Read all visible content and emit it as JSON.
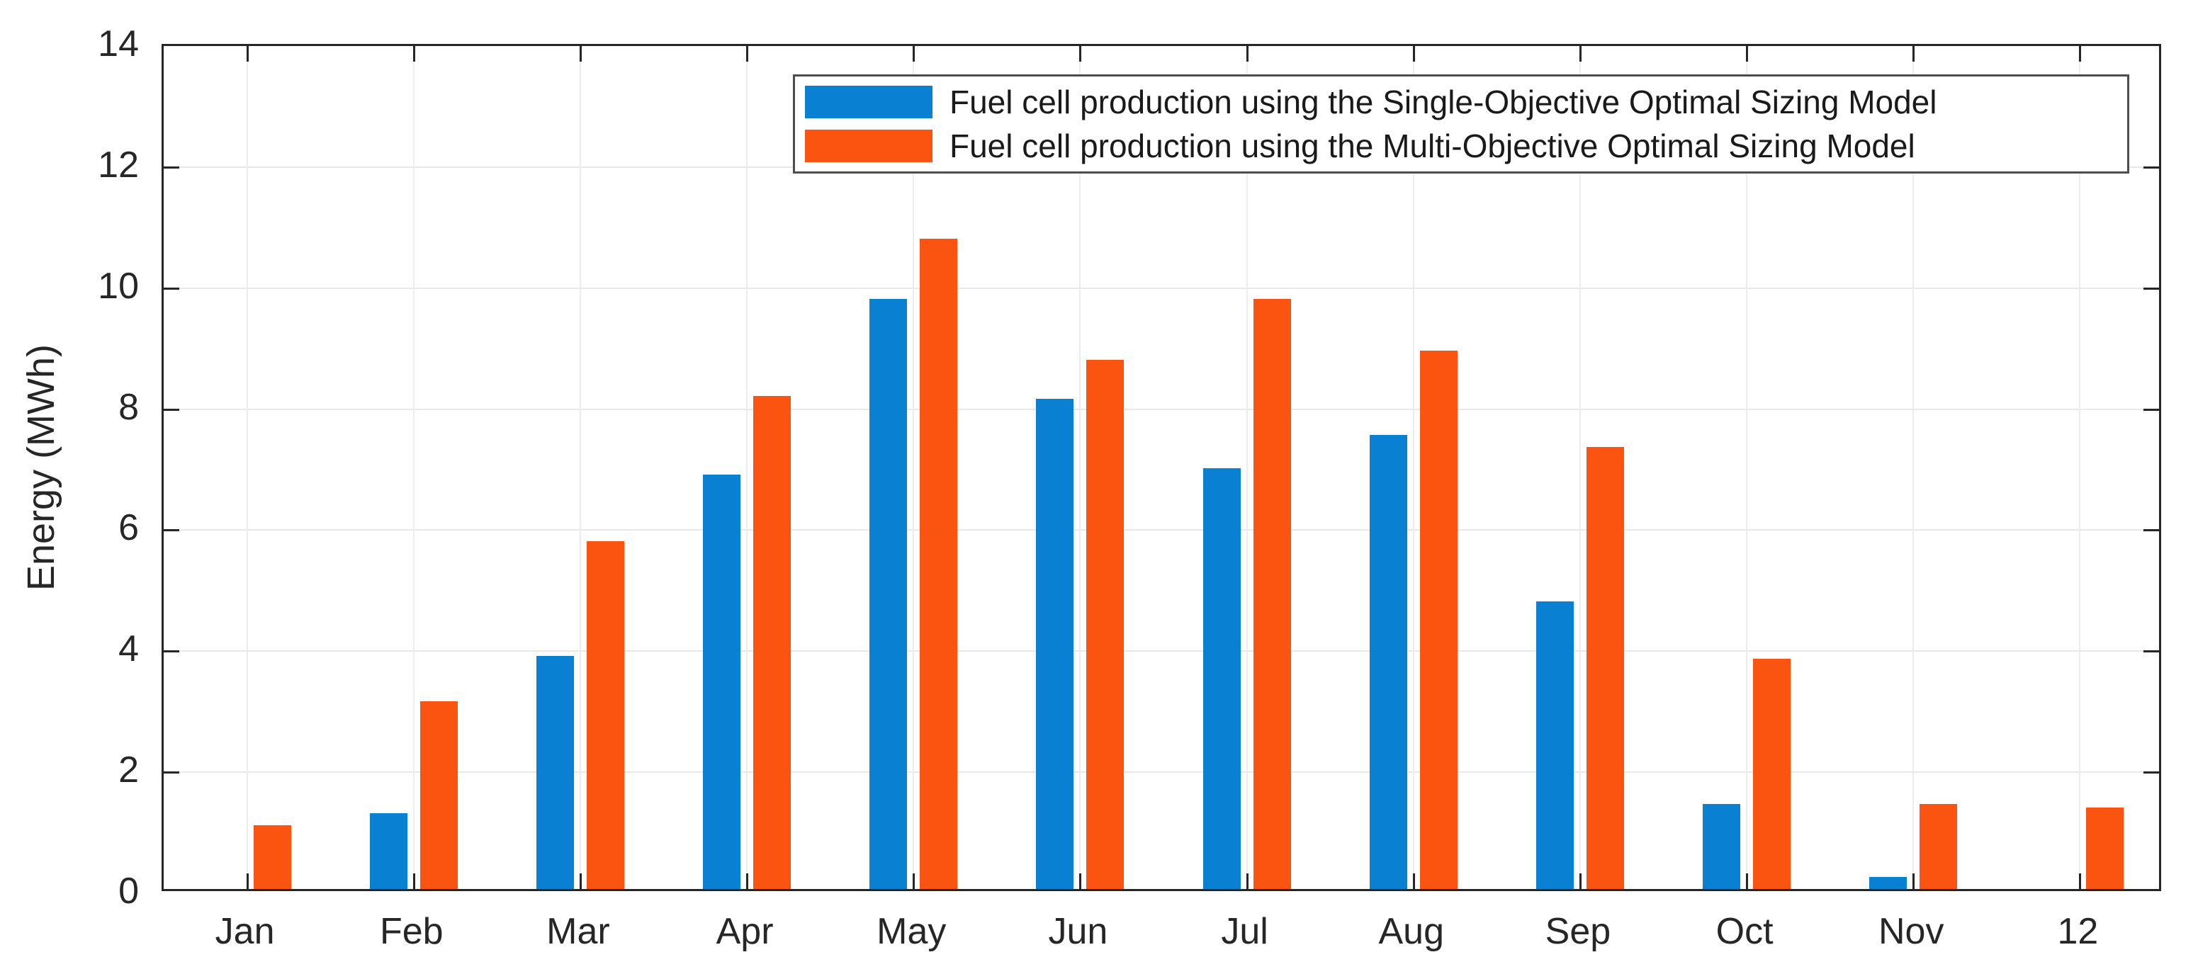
{
  "chart_data": {
    "type": "bar",
    "title": "",
    "xlabel": "",
    "ylabel": "Energy (MWh)",
    "ylim": [
      0,
      14
    ],
    "yticks": [
      0,
      2,
      4,
      6,
      8,
      10,
      12,
      14
    ],
    "grid": true,
    "legend_position": "top-right",
    "categories": [
      "Jan",
      "Feb",
      "Mar",
      "Apr",
      "May",
      "Jun",
      "Jul",
      "Aug",
      "Sep",
      "Oct",
      "Nov",
      "12"
    ],
    "series": [
      {
        "name": "Fuel cell production using the Single-Objective Optimal Sizing Model",
        "color": "#0980d2",
        "values": [
          0,
          1.25,
          3.85,
          6.85,
          9.75,
          8.1,
          6.95,
          7.5,
          4.75,
          1.4,
          0.2,
          0
        ]
      },
      {
        "name": "Fuel cell production using the Multi-Objective Optimal Sizing Model",
        "color": "#fb5310",
        "values": [
          1.05,
          3.1,
          5.75,
          8.15,
          10.75,
          8.75,
          9.75,
          8.9,
          7.3,
          3.8,
          1.4,
          1.35
        ]
      }
    ],
    "colors": {
      "axis": "#262626",
      "grid_h": "#e8e8e8",
      "grid_v": "#ececec",
      "text": "#262626",
      "legend_border": "#4d4d4d"
    }
  }
}
